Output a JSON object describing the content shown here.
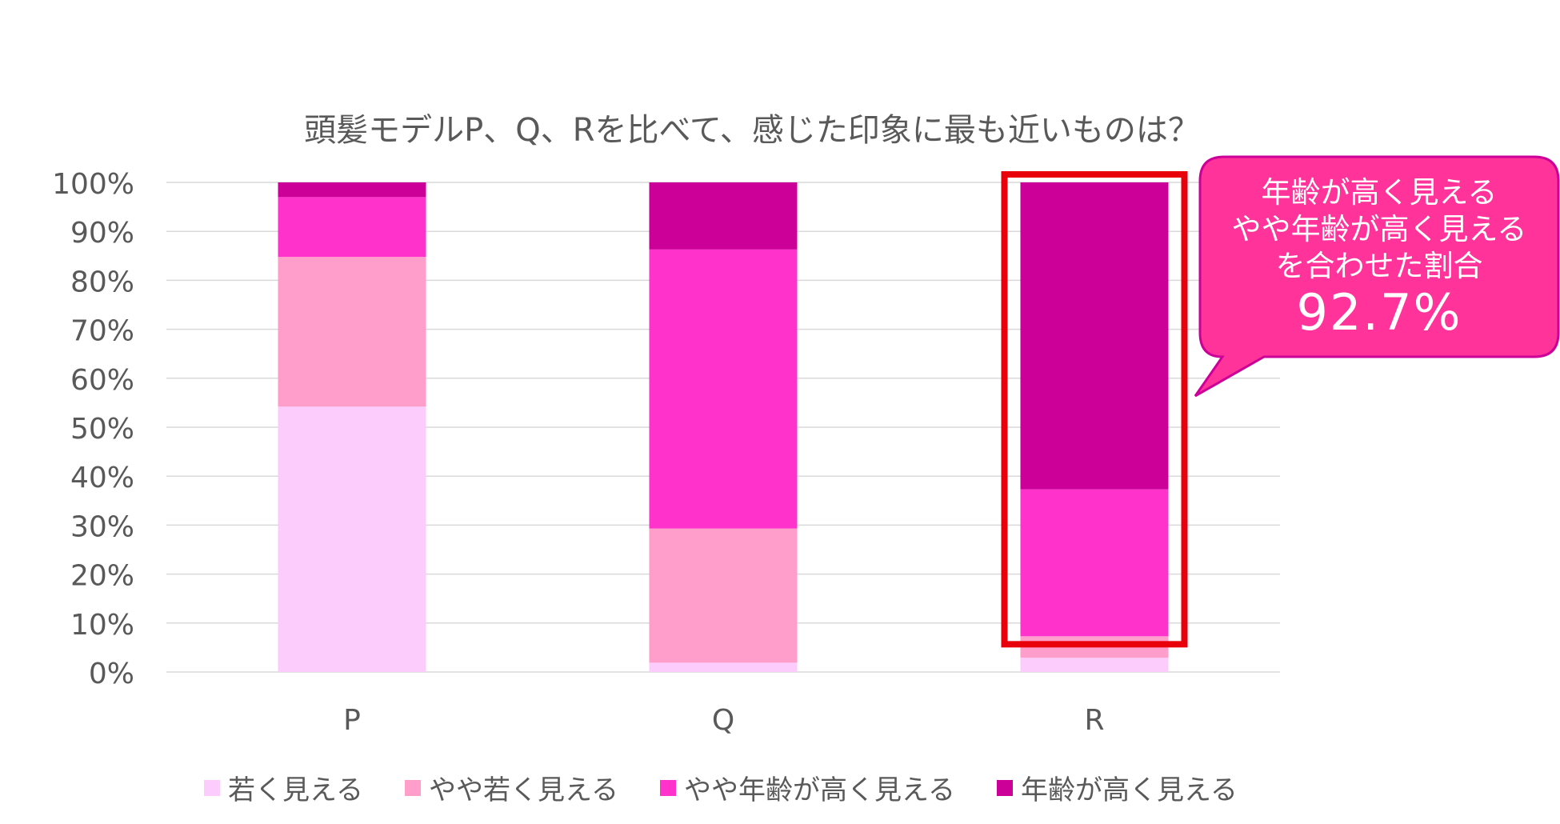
{
  "colors": {
    "young": "#FCCCFC",
    "slightly_young": "#FF9DCB",
    "slightly_older": "#FF33CC",
    "older": "#CC0099",
    "highlight_box": "#E8000B",
    "callout_fill": "#FF3399",
    "callout_stroke": "#CC0099",
    "grid": "#D9D9D9",
    "text": "#595959"
  },
  "callout": {
    "line1": "年齢が高く見える",
    "line2": "やや年齢が高く見える",
    "line3": "を合わせた割合",
    "value": "92.7%"
  },
  "chart_data": {
    "type": "bar",
    "stacked": true,
    "title": "頭髪モデルP、Q、Rを比べて、感じた印象に最も近いものは？",
    "categories": [
      "P",
      "Q",
      "R"
    ],
    "series": [
      {
        "name": "若く見える",
        "color": "#FCCCFC",
        "values": [
          54.2,
          1.9,
          2.9
        ]
      },
      {
        "name": "やや若く見える",
        "color": "#FF9DCB",
        "values": [
          30.6,
          27.4,
          4.4
        ]
      },
      {
        "name": "やや年齢が高く見える",
        "color": "#FF33CC",
        "values": [
          12.2,
          57.0,
          30.0
        ]
      },
      {
        "name": "年齢が高く見える",
        "color": "#CC0099",
        "values": [
          3.0,
          13.7,
          62.7
        ]
      }
    ],
    "ylim": [
      0,
      100
    ],
    "yticks": [
      "0%",
      "10%",
      "20%",
      "30%",
      "40%",
      "50%",
      "60%",
      "70%",
      "80%",
      "90%",
      "100%"
    ],
    "grid": true,
    "legend_position": "bottom",
    "highlighted_category": "R"
  }
}
